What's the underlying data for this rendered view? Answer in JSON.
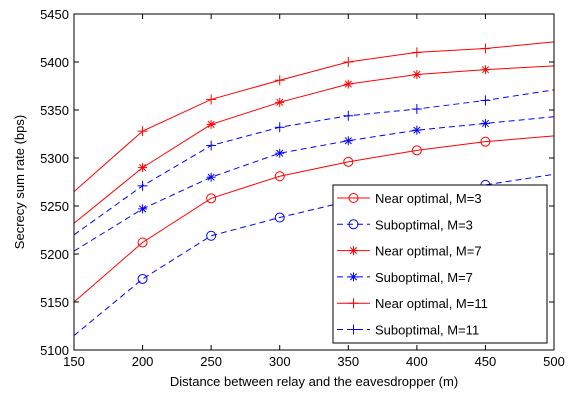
{
  "chart_data": {
    "type": "line",
    "title": "",
    "xlabel": "Distance between relay and the eavesdropper (m)",
    "ylabel": "Secrecy sum rate (bps)",
    "xlim": [
      150,
      500
    ],
    "ylim": [
      5100,
      5450
    ],
    "xticks": [
      150,
      200,
      250,
      300,
      350,
      400,
      450,
      500
    ],
    "yticks": [
      5100,
      5150,
      5200,
      5250,
      5300,
      5350,
      5400,
      5450
    ],
    "grid": false,
    "legend_position": "bottom-right",
    "x": [
      150,
      200,
      250,
      300,
      350,
      400,
      450,
      500
    ],
    "series": [
      {
        "name": "Near optimal, M=3",
        "color": "#ff0000",
        "dash": "solid",
        "marker": "circle",
        "values": [
          5150,
          5212,
          5258,
          5281,
          5296,
          5308,
          5317,
          5323
        ]
      },
      {
        "name": "Suboptimal, M=3",
        "color": "#0000ff",
        "dash": "dashed",
        "marker": "circle",
        "values": [
          5115,
          5174,
          5219,
          5238,
          5255,
          5264,
          5272,
          5283
        ]
      },
      {
        "name": "Near optimal, M=7",
        "color": "#ff0000",
        "dash": "solid",
        "marker": "asterisk",
        "values": [
          5232,
          5290,
          5335,
          5358,
          5377,
          5387,
          5392,
          5396
        ]
      },
      {
        "name": "Suboptimal, M=7",
        "color": "#0000ff",
        "dash": "dashed",
        "marker": "asterisk",
        "values": [
          5203,
          5247,
          5280,
          5305,
          5318,
          5329,
          5336,
          5343
        ]
      },
      {
        "name": "Near optimal, M=11",
        "color": "#ff0000",
        "dash": "solid",
        "marker": "plus",
        "values": [
          5265,
          5328,
          5361,
          5381,
          5400,
          5410,
          5414,
          5421
        ]
      },
      {
        "name": "Suboptimal, M=11",
        "color": "#0000ff",
        "dash": "dashed",
        "marker": "plus",
        "values": [
          5220,
          5271,
          5313,
          5332,
          5344,
          5351,
          5360,
          5371
        ]
      }
    ]
  }
}
